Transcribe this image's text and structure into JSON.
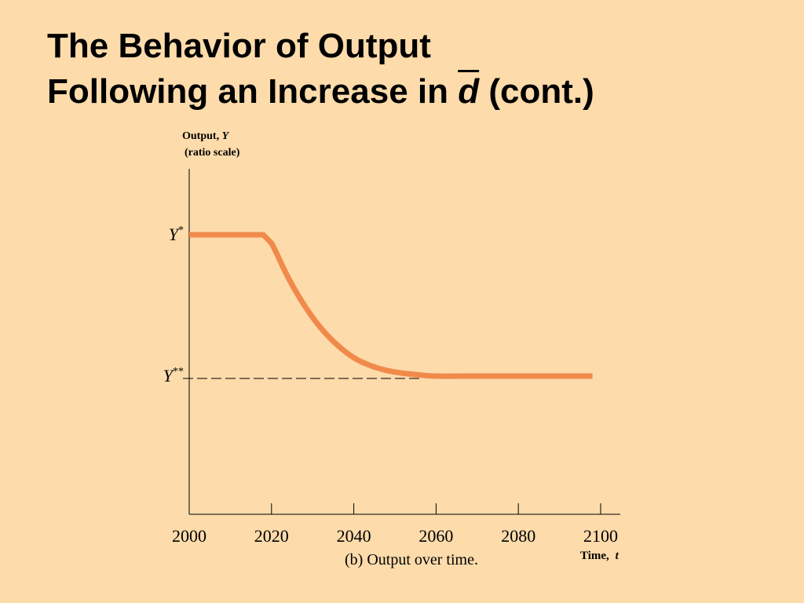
{
  "slide": {
    "title_line1": "The Behavior of Output",
    "title_line2_prefix": "Following an Increase in ",
    "title_line2_var": "d",
    "title_line2_suffix": " (cont.)"
  },
  "chart_data": {
    "type": "line",
    "ylabel_text": "Output, ",
    "ylabel_var": "Y",
    "ylabel_sub": "(ratio scale)",
    "xlabel_text": "Time, ",
    "xlabel_var": "t",
    "caption": "(b) Output over time.",
    "xlim": [
      2000,
      2100
    ],
    "x_ticks": [
      2000,
      2020,
      2040,
      2060,
      2080,
      2100
    ],
    "y_levels": [
      {
        "label": "Y",
        "sup": "*",
        "value": 1.0
      },
      {
        "label": "Y",
        "sup": "**",
        "value": 0.0
      }
    ],
    "series": [
      {
        "name": "Output",
        "color": "#F08A4B",
        "x": [
          2000,
          2018,
          2020,
          2024,
          2028,
          2032,
          2036,
          2040,
          2044,
          2048,
          2052,
          2056,
          2060,
          2070,
          2080,
          2098
        ],
        "y": [
          1.0,
          1.0,
          0.94,
          0.7,
          0.5,
          0.34,
          0.22,
          0.13,
          0.075,
          0.04,
          0.02,
          0.008,
          0.0,
          0.0,
          0.0,
          0.0
        ]
      }
    ],
    "reference_line": {
      "style": "dashed",
      "y_value": 0.0,
      "x_start": 2000,
      "x_end": 2056
    }
  }
}
